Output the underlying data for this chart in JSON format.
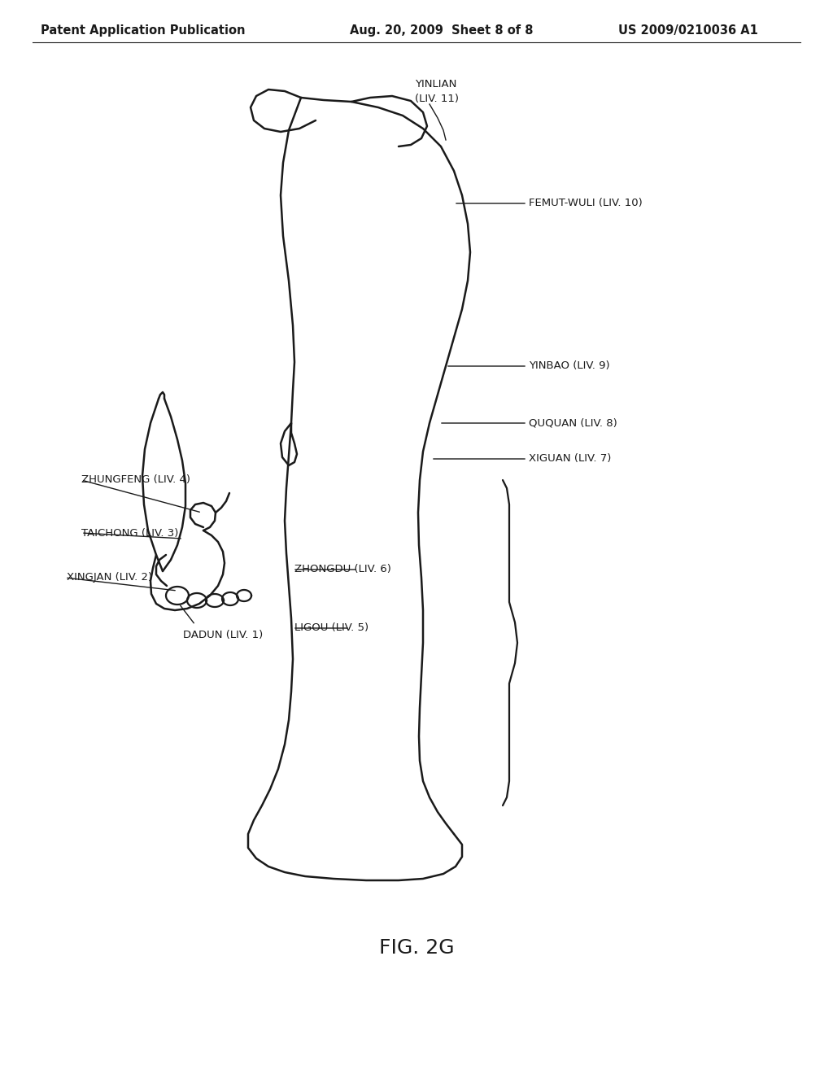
{
  "header_left": "Patent Application Publication",
  "header_center": "Aug. 20, 2009  Sheet 8 of 8",
  "header_right": "US 2009/0210036 A1",
  "figure_label": "FIG. 2G",
  "background_color": "#ffffff",
  "line_color": "#1a1a1a",
  "text_color": "#1a1a1a",
  "header_fontsize": 10.5,
  "label_fontsize": 9.5,
  "figure_label_fontsize": 18
}
